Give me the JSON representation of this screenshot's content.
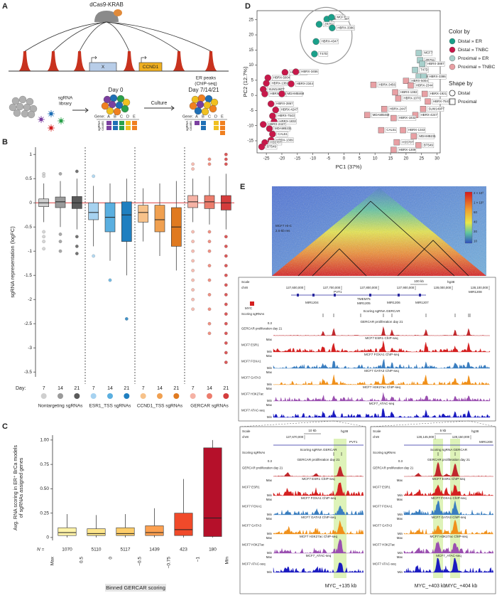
{
  "panel_letters": [
    "A",
    "B",
    "C",
    "D",
    "E"
  ],
  "panel_a": {
    "protein": "dCas9-KRAB",
    "genes": [
      "X",
      "CCND1"
    ],
    "peaks_label": [
      "ER peaks",
      "(ChIP-seq)"
    ],
    "library_label": [
      "sgRNA",
      "library"
    ],
    "day0": "Day 0",
    "culture": "Culture",
    "day_end": "Day 7/14/21",
    "gene_label": "Gene:",
    "gene_letters": [
      "A",
      "B",
      "C",
      "D",
      "E"
    ],
    "counts_label": [
      "sgRNA",
      "counts"
    ]
  },
  "chart_data": [
    {
      "type": "box",
      "y_label": "sgRNA representation (logFC)",
      "x_label": "Day:",
      "ylim": [
        -3.6,
        1.15
      ],
      "yticks": [
        1,
        0.5,
        0,
        -0.5,
        -1,
        -1.5,
        -2,
        -2.5,
        -3,
        -3.5
      ],
      "reference_line": 0,
      "reference_color": "#d42020",
      "groups": [
        {
          "name": "Nontargeting sgRNAs",
          "categories": [
            "7",
            "14",
            "21"
          ],
          "colors": [
            "#cfcfcf",
            "#9a9a9a",
            "#5a5a5a"
          ],
          "boxes": [
            {
              "min": -0.4,
              "q1": -0.08,
              "median": 0,
              "q3": 0.08,
              "max": 0.4,
              "outliers": [
                0.6,
                0.55,
                -0.6,
                -0.7,
                -0.8,
                -0.95
              ]
            },
            {
              "min": -0.5,
              "q1": -0.1,
              "median": 0.02,
              "q3": 0.12,
              "max": 0.45,
              "outliers": [
                0.6,
                -0.65,
                -0.8,
                -1.0
              ]
            },
            {
              "min": -0.55,
              "q1": -0.12,
              "median": 0,
              "q3": 0.13,
              "max": 0.5,
              "outliers": [
                0.65,
                -0.7,
                -0.9,
                -1.05
              ]
            }
          ]
        },
        {
          "name": "ESR1_TSS sgRNAs",
          "categories": [
            "7",
            "14",
            "21"
          ],
          "colors": [
            "#a6d2f0",
            "#5aafe0",
            "#1f7fc0"
          ],
          "boxes": [
            {
              "min": -0.9,
              "q1": -0.35,
              "median": -0.2,
              "q3": 0,
              "max": 0.35,
              "outliers": [
                0.55,
                -1.1
              ]
            },
            {
              "min": -1.2,
              "q1": -0.6,
              "median": -0.3,
              "q3": 0,
              "max": 0.4,
              "outliers": [
                -1.6
              ]
            },
            {
              "min": -1.5,
              "q1": -0.8,
              "median": -0.25,
              "q3": 0.02,
              "max": 0.5,
              "outliers": [
                -2.4
              ]
            }
          ]
        },
        {
          "name": "CCND1_TSS sgRNAs",
          "categories": [
            "7",
            "14",
            "21"
          ],
          "colors": [
            "#f7c28a",
            "#f0a050",
            "#e07a20"
          ],
          "boxes": [
            {
              "min": -0.8,
              "q1": -0.4,
              "median": -0.2,
              "q3": -0.05,
              "max": 0.3,
              "outliers": []
            },
            {
              "min": -1.1,
              "q1": -0.6,
              "median": -0.35,
              "q3": -0.05,
              "max": 0.4,
              "outliers": []
            },
            {
              "min": -1.4,
              "q1": -0.9,
              "median": -0.5,
              "q3": -0.1,
              "max": 0.45,
              "outliers": []
            }
          ]
        },
        {
          "name": "GERCAR sgRNAs",
          "categories": [
            "7",
            "14",
            "21"
          ],
          "colors": [
            "#f5b2a5",
            "#ec7c6c",
            "#d43c3c"
          ],
          "boxes": [
            {
              "min": -0.4,
              "q1": -0.1,
              "median": 0.02,
              "q3": 0.15,
              "max": 0.5,
              "outliers": [
                0.8,
                0.7,
                -0.6,
                -0.8,
                -1.0,
                -1.2,
                -1.4,
                -1.6,
                -1.8,
                -2.0,
                -2.2
              ]
            },
            {
              "min": -0.45,
              "q1": -0.12,
              "median": 0.02,
              "q3": 0.15,
              "max": 0.55,
              "outliers": [
                0.9,
                0.8,
                -0.6,
                -0.8,
                -1.0,
                -1.3,
                -1.6,
                -1.9,
                -2.2,
                -2.5,
                -2.7
              ]
            },
            {
              "min": -0.55,
              "q1": -0.15,
              "median": 0,
              "q3": 0.15,
              "max": 0.6,
              "outliers": [
                1.0,
                0.9,
                0.8,
                -0.7,
                -0.9,
                -1.1,
                -1.3,
                -1.5,
                -1.7,
                -1.9,
                -2.1,
                -2.3,
                -2.5,
                -2.7,
                -2.9,
                -3.1,
                -3.3
              ]
            }
          ]
        }
      ]
    },
    {
      "type": "box",
      "y_label": [
        "Avg. RNA scoring in ER⁺ BrCa models",
        "of sgRNAs assigned genes"
      ],
      "x_label": "Binned GERCAR scoring",
      "ylim": [
        -0.03,
        1.05
      ],
      "yticks": [
        0,
        0.25,
        {
          "value": 0.5,
          "label": "0.50"
        },
        0.75,
        {
          "value": 1,
          "label": "1.00"
        }
      ],
      "bin_edges": [
        "Max",
        "0.5",
        "0",
        "−0.5",
        "−0.75",
        "−1",
        "Min"
      ],
      "n_label": "N =",
      "n": [
        1070,
        5110,
        5117,
        1439,
        423,
        180
      ],
      "colors": [
        "#fff3a8",
        "#fde58a",
        "#fdcd6a",
        "#fca050",
        "#f04a2a",
        "#b5102a"
      ],
      "boxes": [
        {
          "min": 0,
          "q1": 0.02,
          "median": 0.05,
          "q3": 0.1,
          "max": 0.24
        },
        {
          "min": 0,
          "q1": 0.02,
          "median": 0.04,
          "q3": 0.09,
          "max": 0.23
        },
        {
          "min": 0,
          "q1": 0.02,
          "median": 0.04,
          "q3": 0.1,
          "max": 0.24
        },
        {
          "min": 0,
          "q1": 0.02,
          "median": 0.05,
          "q3": 0.12,
          "max": 0.3
        },
        {
          "min": 0,
          "q1": 0.02,
          "median": 0.08,
          "q3": 0.25,
          "max": 0.6
        },
        {
          "min": 0,
          "q1": 0.01,
          "median": 0.2,
          "q3": 0.92,
          "max": 1.0
        }
      ]
    },
    {
      "type": "scatter",
      "x_label": "PC1 (37%)",
      "y_label": "PC2 (12.7%)",
      "xlim": [
        -28,
        31
      ],
      "ylim": [
        -19,
        28
      ],
      "xticks": [
        -25,
        -20,
        -15,
        -10,
        -5,
        0,
        5,
        10,
        15,
        20,
        25,
        30
      ],
      "yticks": [
        -15,
        -10,
        -5,
        0,
        5,
        10,
        15,
        20,
        25
      ],
      "legend_color_title": "Color by",
      "legend_shape_title": "Shape by",
      "shapes": [
        {
          "name": "Distal",
          "marker": "circle"
        },
        {
          "name": "Proximal",
          "marker": "square"
        }
      ],
      "series": [
        {
          "name": "Distal » ER",
          "color": "#1aa08a",
          "marker": "circle",
          "encircled": true,
          "x": [
            -5.5,
            -4.0,
            -8.0,
            -3.8,
            -9.0,
            -9.5
          ],
          "y": [
            25.2,
            25.8,
            23.5,
            22.3,
            17.8,
            13.7
          ],
          "labels": [
            "HBRX-3887",
            "MCF7",
            "ZR751",
            "HBRX-3386",
            "HBRX-4347",
            "T47D"
          ]
        },
        {
          "name": "Distal » TNBC",
          "color": "#c8184a",
          "marker": "circle",
          "x": [
            -19.0,
            -15.5,
            -24.5,
            -25.0,
            -17.0,
            -26.0,
            -25.5,
            -20.0,
            -23.5,
            -22.0,
            -23.0,
            -22.5,
            -26.0,
            -24.0,
            -23.0,
            -23.5,
            -25.5,
            -26.5
          ],
          "y": [
            7.6,
            7.8,
            5.8,
            4.0,
            3.8,
            2.0,
            0.5,
            0.5,
            -2.8,
            -4.8,
            -6.8,
            -8.6,
            -9.6,
            -11.0,
            -12.8,
            -14.8,
            -15.6,
            -17.0
          ],
          "labels": [
            "HBRX-1070",
            "HBRX-3456",
            "HBRX-5004",
            "HBRX-1382",
            "HBRX-2344",
            "SUM149PT",
            "HBRX-1921",
            "MDAMB468",
            "HBRX-2867",
            "HBRX-4247",
            "HBRX-7543",
            "HBRX-1832",
            "HBRX-2447",
            "MDAMB231",
            "CAL51",
            "HBRX-1309",
            "HS578T",
            "BT549"
          ]
        },
        {
          "name": "Proximal » ER",
          "color": "#a8d0cc",
          "marker": "square",
          "x": [
            24.1,
            24.5,
            25.2,
            22.9,
            24.1,
            25.7
          ],
          "y": [
            14.0,
            11.6,
            10.4,
            8.4,
            6.2,
            6.2
          ],
          "labels": [
            "MCF7",
            "ZR751",
            "HBRX-3887",
            "T47D",
            "HBRX-4347",
            "HBRX-3386"
          ]
        },
        {
          "name": "Proximal » TNBC",
          "color": "#e8a0a4",
          "marker": "square",
          "x": [
            9.5,
            20.0,
            21.5,
            16.5,
            26.0,
            17.5,
            27.0,
            25.5,
            13.0,
            7.5,
            23.0,
            16.0,
            12.0,
            19.0,
            22.5,
            17.0,
            24.0,
            16.0
          ],
          "y": [
            3.5,
            4.8,
            3.3,
            1.0,
            0.5,
            -1.0,
            -2.0,
            -4.5,
            -4.5,
            -6.5,
            -6.5,
            -7.5,
            -11.5,
            -11.5,
            -13.5,
            -15.5,
            -16.5,
            -18.0
          ],
          "labels": [
            "HBRX-3456",
            "HBRX-5004",
            "HBRX-2344",
            "HBRX-1382",
            "HBRX-1921",
            "HBRX-1070",
            "HBRX-7543",
            "SUM149PT",
            "HBRX-2447",
            "MDAMB468",
            "HBRX-4247",
            "HBRX-1832",
            "CAL51",
            "HBRX-1343",
            "MDAMB231",
            "HS578T",
            "BT549",
            "HBRX-1309"
          ]
        }
      ]
    }
  ],
  "panel_e": {
    "hic_label": [
      "MCF7 Hi-C",
      "2.5-kb res"
    ],
    "colorbar": [
      "2 × 10³",
      "1 × 10³",
      "60",
      "40",
      "20",
      "10"
    ],
    "scale": "Scale",
    "chrom": "chr8",
    "scalebar": "100 kb",
    "assembly": "hg38",
    "coords": [
      "127,600,000",
      "127,700,000",
      "127,800,000",
      "127,900,000",
      "128,000,000",
      "128,100,000"
    ],
    "genes": [
      "PVT1",
      "MYC",
      "MIR1204",
      "TMEM75",
      "MIR1205",
      "MIR1206",
      "MIR1207",
      "MIR1208"
    ],
    "max_label": "Max",
    "min_label": "Min",
    "tracks": [
      {
        "label": "Scoring sgRNAs",
        "title": "Scoring sgRNA GERCAR",
        "color": "#333333"
      },
      {
        "label": "GERCAR proliferation day 21",
        "title": "GERCAR proliferation day 21",
        "color": "#c0282c",
        "scale_label": "0.3"
      },
      {
        "label": "MCF7 ESR1",
        "title": "MCF7 ESR1 ChIP-seq",
        "color": "#d42020"
      },
      {
        "label": "MCF7 FOXA1",
        "title": "MCF7 FOXA1 ChIP-seq",
        "color": "#3a7ec0"
      },
      {
        "label": "MCF7 GATA3",
        "title": "MCF7 GATA3 ChIP-seq",
        "color": "#f0901a"
      },
      {
        "label": "MCF7 H3K27ac",
        "title": "MCF7 H3K27ac ChIP-seq",
        "color": "#9a4fb0"
      },
      {
        "label": "MCF7 ATAC-seq",
        "title": "MCF7_ATAC-seq",
        "color": "#1a1ac0"
      }
    ],
    "zooms": [
      {
        "scalebar": "10 kb",
        "coords": [
          "127,670,000"
        ],
        "gene": "PVT1",
        "highlights": [
          "MYC_+135 kb"
        ]
      },
      {
        "scalebar": "5 kb",
        "coords": [
          "128,145,000",
          "128,150,000"
        ],
        "gene": "MIR1208",
        "highlights": [
          "MYC_+403 kb",
          "MYC_+404 kb"
        ]
      }
    ]
  }
}
